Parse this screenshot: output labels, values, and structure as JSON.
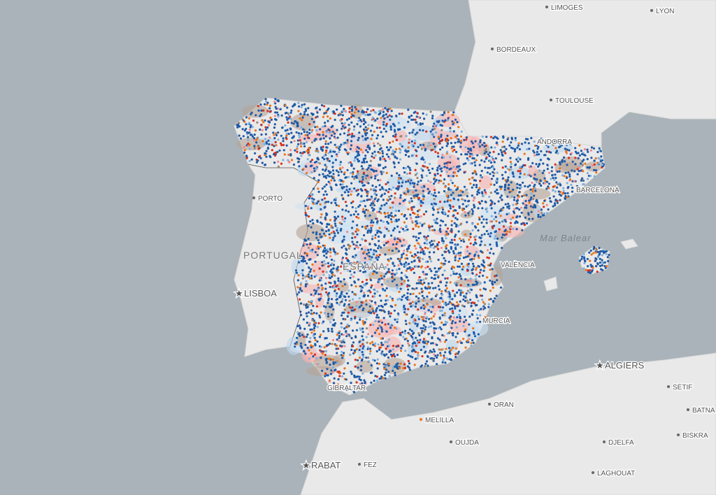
{
  "map": {
    "cities": [
      "LIMOGES",
      "LYON",
      "BORDEAUX",
      "TOULOUSE",
      "ANDORRA",
      "BARCELONA",
      "PORTO",
      "VALÈNCIA",
      "MURCIA",
      "GIBRALTAR",
      "ORAN",
      "MELILLA",
      "OUJDA",
      "FEZ",
      "SÉTIF",
      "BATNA",
      "BISKRA",
      "DJELFA",
      "LAGHOUAT"
    ],
    "capitals": [
      "LISBOA",
      "ALGIERS",
      "RABAT"
    ],
    "countries": [
      "PORTUGAL",
      "ESPAÑA"
    ],
    "seas": [
      "Mar Balear"
    ]
  }
}
